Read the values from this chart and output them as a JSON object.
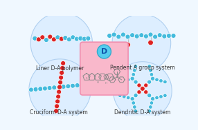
{
  "bg_color": "#f0f8ff",
  "circle_color": "#ddeeff",
  "circle_edge": "#b0d0f0",
  "center_box_color": "#f9b8cb",
  "center_box_edge": "#f090b0",
  "donor_circle_color": "#55ccee",
  "donor_circle_edge": "#33aacc",
  "donor_label": "D",
  "blue_bead": "#44bbdd",
  "red_bead": "#dd2222",
  "labels": {
    "linear": "Liner D-A polymer",
    "pendant": "Pendent A group system",
    "cruciform": "Cruciform D-A system",
    "dendritic": "Dendritic D-A system"
  },
  "label_fontsize": 5.5,
  "donor_fontsize": 8
}
